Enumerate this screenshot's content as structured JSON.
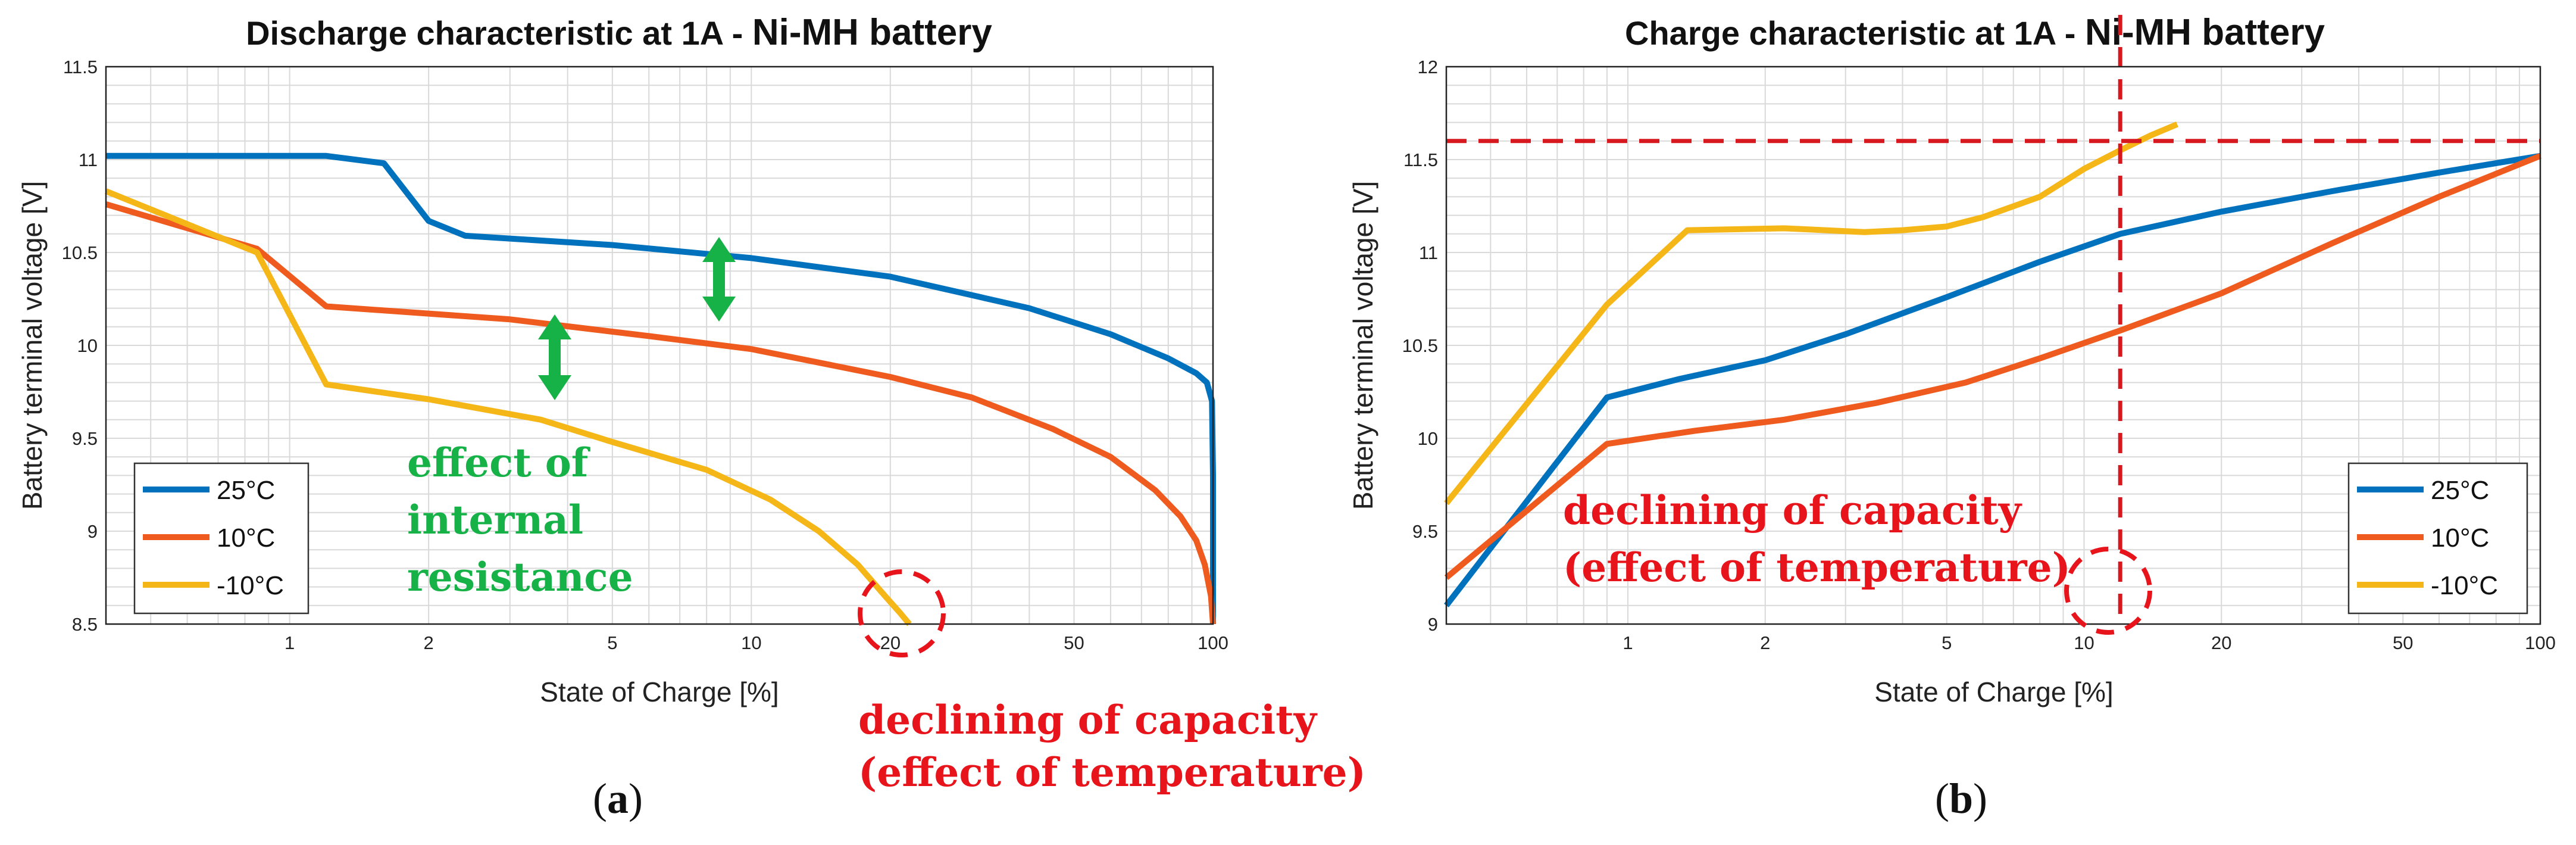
{
  "chart_data": [
    {
      "type": "line",
      "panel": "a",
      "title_main": "Discharge characteristic at 1A - ",
      "title_suffix": "Ni-MH battery",
      "xlabel": "State of Charge [%]",
      "ylabel": "Battery terminal voltage [V]",
      "xscale": "log",
      "xlim": [
        0.4,
        100
      ],
      "ylim": [
        8.5,
        11.5
      ],
      "xticks": [
        1,
        2,
        5,
        10,
        20,
        50,
        100
      ],
      "xtick_labels": [
        "1",
        "2",
        "5",
        "10",
        "20",
        "50",
        "100"
      ],
      "yticks": [
        8.5,
        9,
        9.5,
        10,
        10.5,
        11,
        11.5
      ],
      "ytick_labels": [
        "8.5",
        "9",
        "9.5",
        "10",
        "10.5",
        "11",
        "11.5"
      ],
      "grid": true,
      "legend_position": "bottom-left",
      "series": [
        {
          "name": "25°C",
          "color": "#0072bd",
          "x": [
            0.4,
            1.2,
            1.6,
            2.0,
            2.4,
            5,
            10,
            20,
            40,
            60,
            80,
            92,
            97,
            99.5,
            100,
            100
          ],
          "y": [
            11.02,
            11.02,
            10.98,
            10.67,
            10.59,
            10.54,
            10.47,
            10.37,
            10.2,
            10.06,
            9.93,
            9.85,
            9.8,
            9.7,
            9.3,
            8.5
          ]
        },
        {
          "name": "10°C",
          "color": "#ef5b1e",
          "x": [
            0.4,
            0.85,
            1.2,
            3,
            6,
            10,
            20,
            30,
            45,
            60,
            75,
            85,
            92,
            96,
            99,
            100
          ],
          "y": [
            10.76,
            10.52,
            10.21,
            10.14,
            10.05,
            9.98,
            9.83,
            9.72,
            9.55,
            9.4,
            9.22,
            9.08,
            8.95,
            8.82,
            8.65,
            8.5
          ]
        },
        {
          "name": "-10°C",
          "color": "#f5b617",
          "x": [
            0.4,
            0.85,
            1.2,
            2,
            3.5,
            5,
            8,
            11,
            14,
            17,
            19.5,
            21,
            22
          ],
          "y": [
            10.83,
            10.5,
            9.79,
            9.71,
            9.6,
            9.48,
            9.33,
            9.17,
            9.0,
            8.82,
            8.65,
            8.56,
            8.5
          ]
        }
      ],
      "annotations": {
        "internal_resistance": [
          "effect of",
          "internal",
          "resistance"
        ],
        "temperature": [
          "declining of capacity",
          "(effect of temperature)"
        ]
      },
      "panel_label": "a"
    },
    {
      "type": "line",
      "panel": "b",
      "title_main": "Charge characteristic at 1A - ",
      "title_suffix": "Ni-MH battery",
      "xlabel": "State of Charge [%]",
      "ylabel": "Battery terminal voltage [V]",
      "xscale": "log",
      "xlim": [
        0.4,
        100
      ],
      "ylim": [
        9,
        12
      ],
      "xticks": [
        1,
        2,
        5,
        10,
        20,
        50,
        100
      ],
      "xtick_labels": [
        "1",
        "2",
        "5",
        "10",
        "20",
        "50",
        "100"
      ],
      "yticks": [
        9,
        9.5,
        10,
        10.5,
        11,
        11.5,
        12
      ],
      "ytick_labels": [
        "9",
        "9.5",
        "10",
        "10.5",
        "11",
        "11.5",
        "12"
      ],
      "grid": true,
      "legend_position": "bottom-right",
      "reference_lines": {
        "h": 11.6,
        "v": 12
      },
      "series": [
        {
          "name": "25°C",
          "color": "#0072bd",
          "x": [
            0.4,
            0.9,
            1.3,
            2,
            3,
            5,
            8,
            12,
            20,
            35,
            60,
            100
          ],
          "y": [
            9.1,
            10.22,
            10.32,
            10.42,
            10.56,
            10.76,
            10.95,
            11.1,
            11.22,
            11.33,
            11.43,
            11.52
          ]
        },
        {
          "name": "10°C",
          "color": "#ef5b1e",
          "x": [
            0.4,
            0.9,
            1.4,
            2.2,
            3.5,
            5.5,
            8,
            12,
            20,
            35,
            60,
            100
          ],
          "y": [
            9.25,
            9.97,
            10.04,
            10.1,
            10.19,
            10.3,
            10.43,
            10.58,
            10.78,
            11.05,
            11.3,
            11.52
          ]
        },
        {
          "name": "-10°C",
          "color": "#f5b617",
          "x": [
            0.4,
            0.9,
            1.35,
            2.2,
            3.3,
            4,
            5,
            6,
            8,
            10,
            12,
            14,
            16
          ],
          "y": [
            9.65,
            10.72,
            11.12,
            11.13,
            11.11,
            11.12,
            11.14,
            11.19,
            11.3,
            11.45,
            11.55,
            11.63,
            11.69
          ]
        }
      ],
      "annotations": {
        "temperature": [
          "declining of capacity",
          "(effect of temperature)"
        ]
      },
      "panel_label": "b"
    }
  ]
}
